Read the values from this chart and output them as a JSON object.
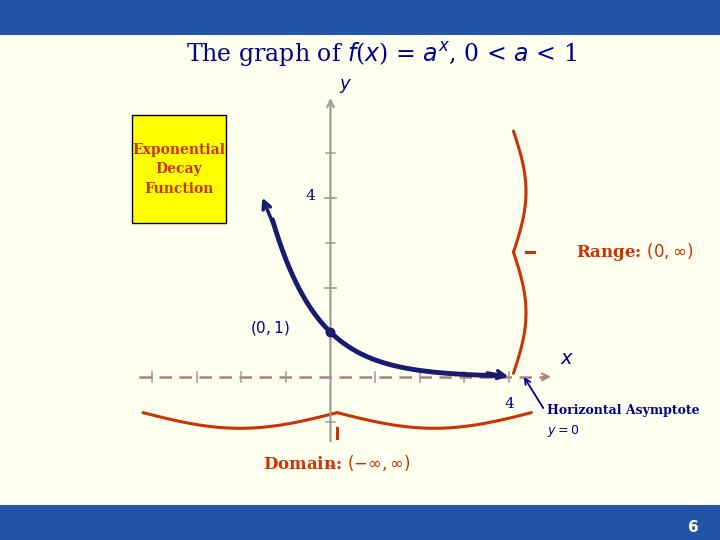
{
  "bg_color": "#FFFFF0",
  "bg_outer": "#FFFFF0",
  "title_color": "#00008B",
  "title_fontsize": 17,
  "curve_color": "#1a1a6e",
  "axis_color": "#999999",
  "dashed_color": "#B08080",
  "orange_color": "#CC3300",
  "yellow_box_color": "#FFFF00",
  "yellow_box_text": "Exponential\nDecay\nFunction",
  "yellow_box_text_color": "#CC3300",
  "range_text": "Range: $(0, \\infty)$",
  "domain_text": "Domain: $(-\\infty, \\infty)$",
  "asymptote_label1": "Horizontal Asymptote",
  "asymptote_label2": "$y = 0$",
  "point_label": "$(0, 1)$",
  "x_label": "$x$",
  "y_label": "$y$",
  "axis_label_color": "#00008B",
  "page_number": "6",
  "blue_bar": "#2255AA"
}
